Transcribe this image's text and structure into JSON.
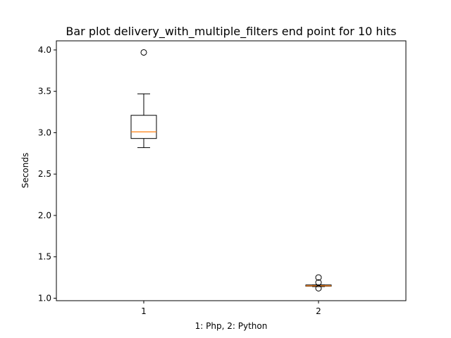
{
  "chart_data": {
    "type": "box",
    "title": "Bar plot delivery_with_multiple_filters end point for 10 hits",
    "xlabel": "1: Php, 2: Python",
    "ylabel": "Seconds",
    "ylim": [
      0.97,
      4.11
    ],
    "xlim": [
      0.5,
      2.5
    ],
    "yticks": [
      1.0,
      1.5,
      2.0,
      2.5,
      3.0,
      3.5,
      4.0
    ],
    "ytick_labels": [
      "1.0",
      "1.5",
      "2.0",
      "2.5",
      "3.0",
      "3.5",
      "4.0"
    ],
    "categories": [
      "1",
      "2"
    ],
    "grid": false,
    "boxes": [
      {
        "label": "1",
        "whisker_low": 2.82,
        "q1": 2.93,
        "median": 3.01,
        "q3": 3.21,
        "whisker_high": 3.47,
        "outliers": [
          3.97
        ]
      },
      {
        "label": "2",
        "whisker_low": 1.14,
        "q1": 1.145,
        "median": 1.15,
        "q3": 1.16,
        "whisker_high": 1.16,
        "outliers": [
          1.25,
          1.19,
          1.12
        ]
      }
    ],
    "colors": {
      "box": "#000000",
      "median": "#ff7f0e",
      "outlier": "#000000"
    }
  }
}
